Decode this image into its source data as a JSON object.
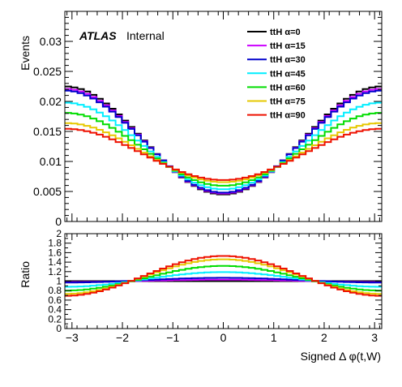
{
  "chart_data": [
    {
      "type": "line",
      "style": "step-histogram",
      "title": "",
      "xlabel": "",
      "ylabel": "Events",
      "xlim": [
        -3.1416,
        3.1416
      ],
      "ylim": [
        0,
        0.035
      ],
      "yticks": [
        "0",
        "0.005",
        "0.01",
        "0.015",
        "0.02",
        "0.025",
        "0.03"
      ],
      "grid": false,
      "legend_position": "top-right",
      "annotation": {
        "experiment": "ATLAS",
        "status": "Internal"
      },
      "series": [
        {
          "name": "ttH α=0",
          "color": "#000000",
          "edge": 0.0225,
          "center": 0.0045
        },
        {
          "name": "ttH α=15",
          "color": "#cc00ff",
          "edge": 0.0221,
          "center": 0.00465
        },
        {
          "name": "ttH α=30",
          "color": "#0000cc",
          "edge": 0.0218,
          "center": 0.0048
        },
        {
          "name": "ttH α=45",
          "color": "#00eeff",
          "edge": 0.0198,
          "center": 0.00535
        },
        {
          "name": "ttH α=60",
          "color": "#00dd00",
          "edge": 0.0181,
          "center": 0.00595
        },
        {
          "name": "ttH α=75",
          "color": "#e6c800",
          "edge": 0.0164,
          "center": 0.00655
        },
        {
          "name": "ttH α=90",
          "color": "#ee1100",
          "edge": 0.01545,
          "center": 0.0069
        }
      ]
    },
    {
      "type": "line",
      "style": "step-histogram",
      "title": "",
      "xlabel": "Signed Δ φ(t,W)",
      "ylabel": "Ratio",
      "xlim": [
        -3.1416,
        3.1416
      ],
      "ylim": [
        0,
        2
      ],
      "xticks": [
        "−3",
        "−2",
        "−1",
        "0",
        "1",
        "2",
        "3"
      ],
      "yticks": [
        "0",
        "0.2",
        "0.4",
        "0.6",
        "0.8",
        "1",
        "1.2",
        "1.4",
        "1.6",
        "1.8",
        "2"
      ],
      "grid": false,
      "reference_line": 1,
      "series": [
        {
          "name": "ttH α=0",
          "color": "#000000",
          "edge": 1.0,
          "center": 1.0
        },
        {
          "name": "ttH α=15",
          "color": "#cc00ff",
          "edge": 0.98,
          "center": 1.03
        },
        {
          "name": "ttH α=30",
          "color": "#0000cc",
          "edge": 0.97,
          "center": 1.07
        },
        {
          "name": "ttH α=45",
          "color": "#00eeff",
          "edge": 0.88,
          "center": 1.19
        },
        {
          "name": "ttH α=60",
          "color": "#00dd00",
          "edge": 0.8,
          "center": 1.32
        },
        {
          "name": "ttH α=75",
          "color": "#e6c800",
          "edge": 0.73,
          "center": 1.46
        },
        {
          "name": "ttH α=90",
          "color": "#ee1100",
          "edge": 0.69,
          "center": 1.53
        }
      ]
    }
  ]
}
